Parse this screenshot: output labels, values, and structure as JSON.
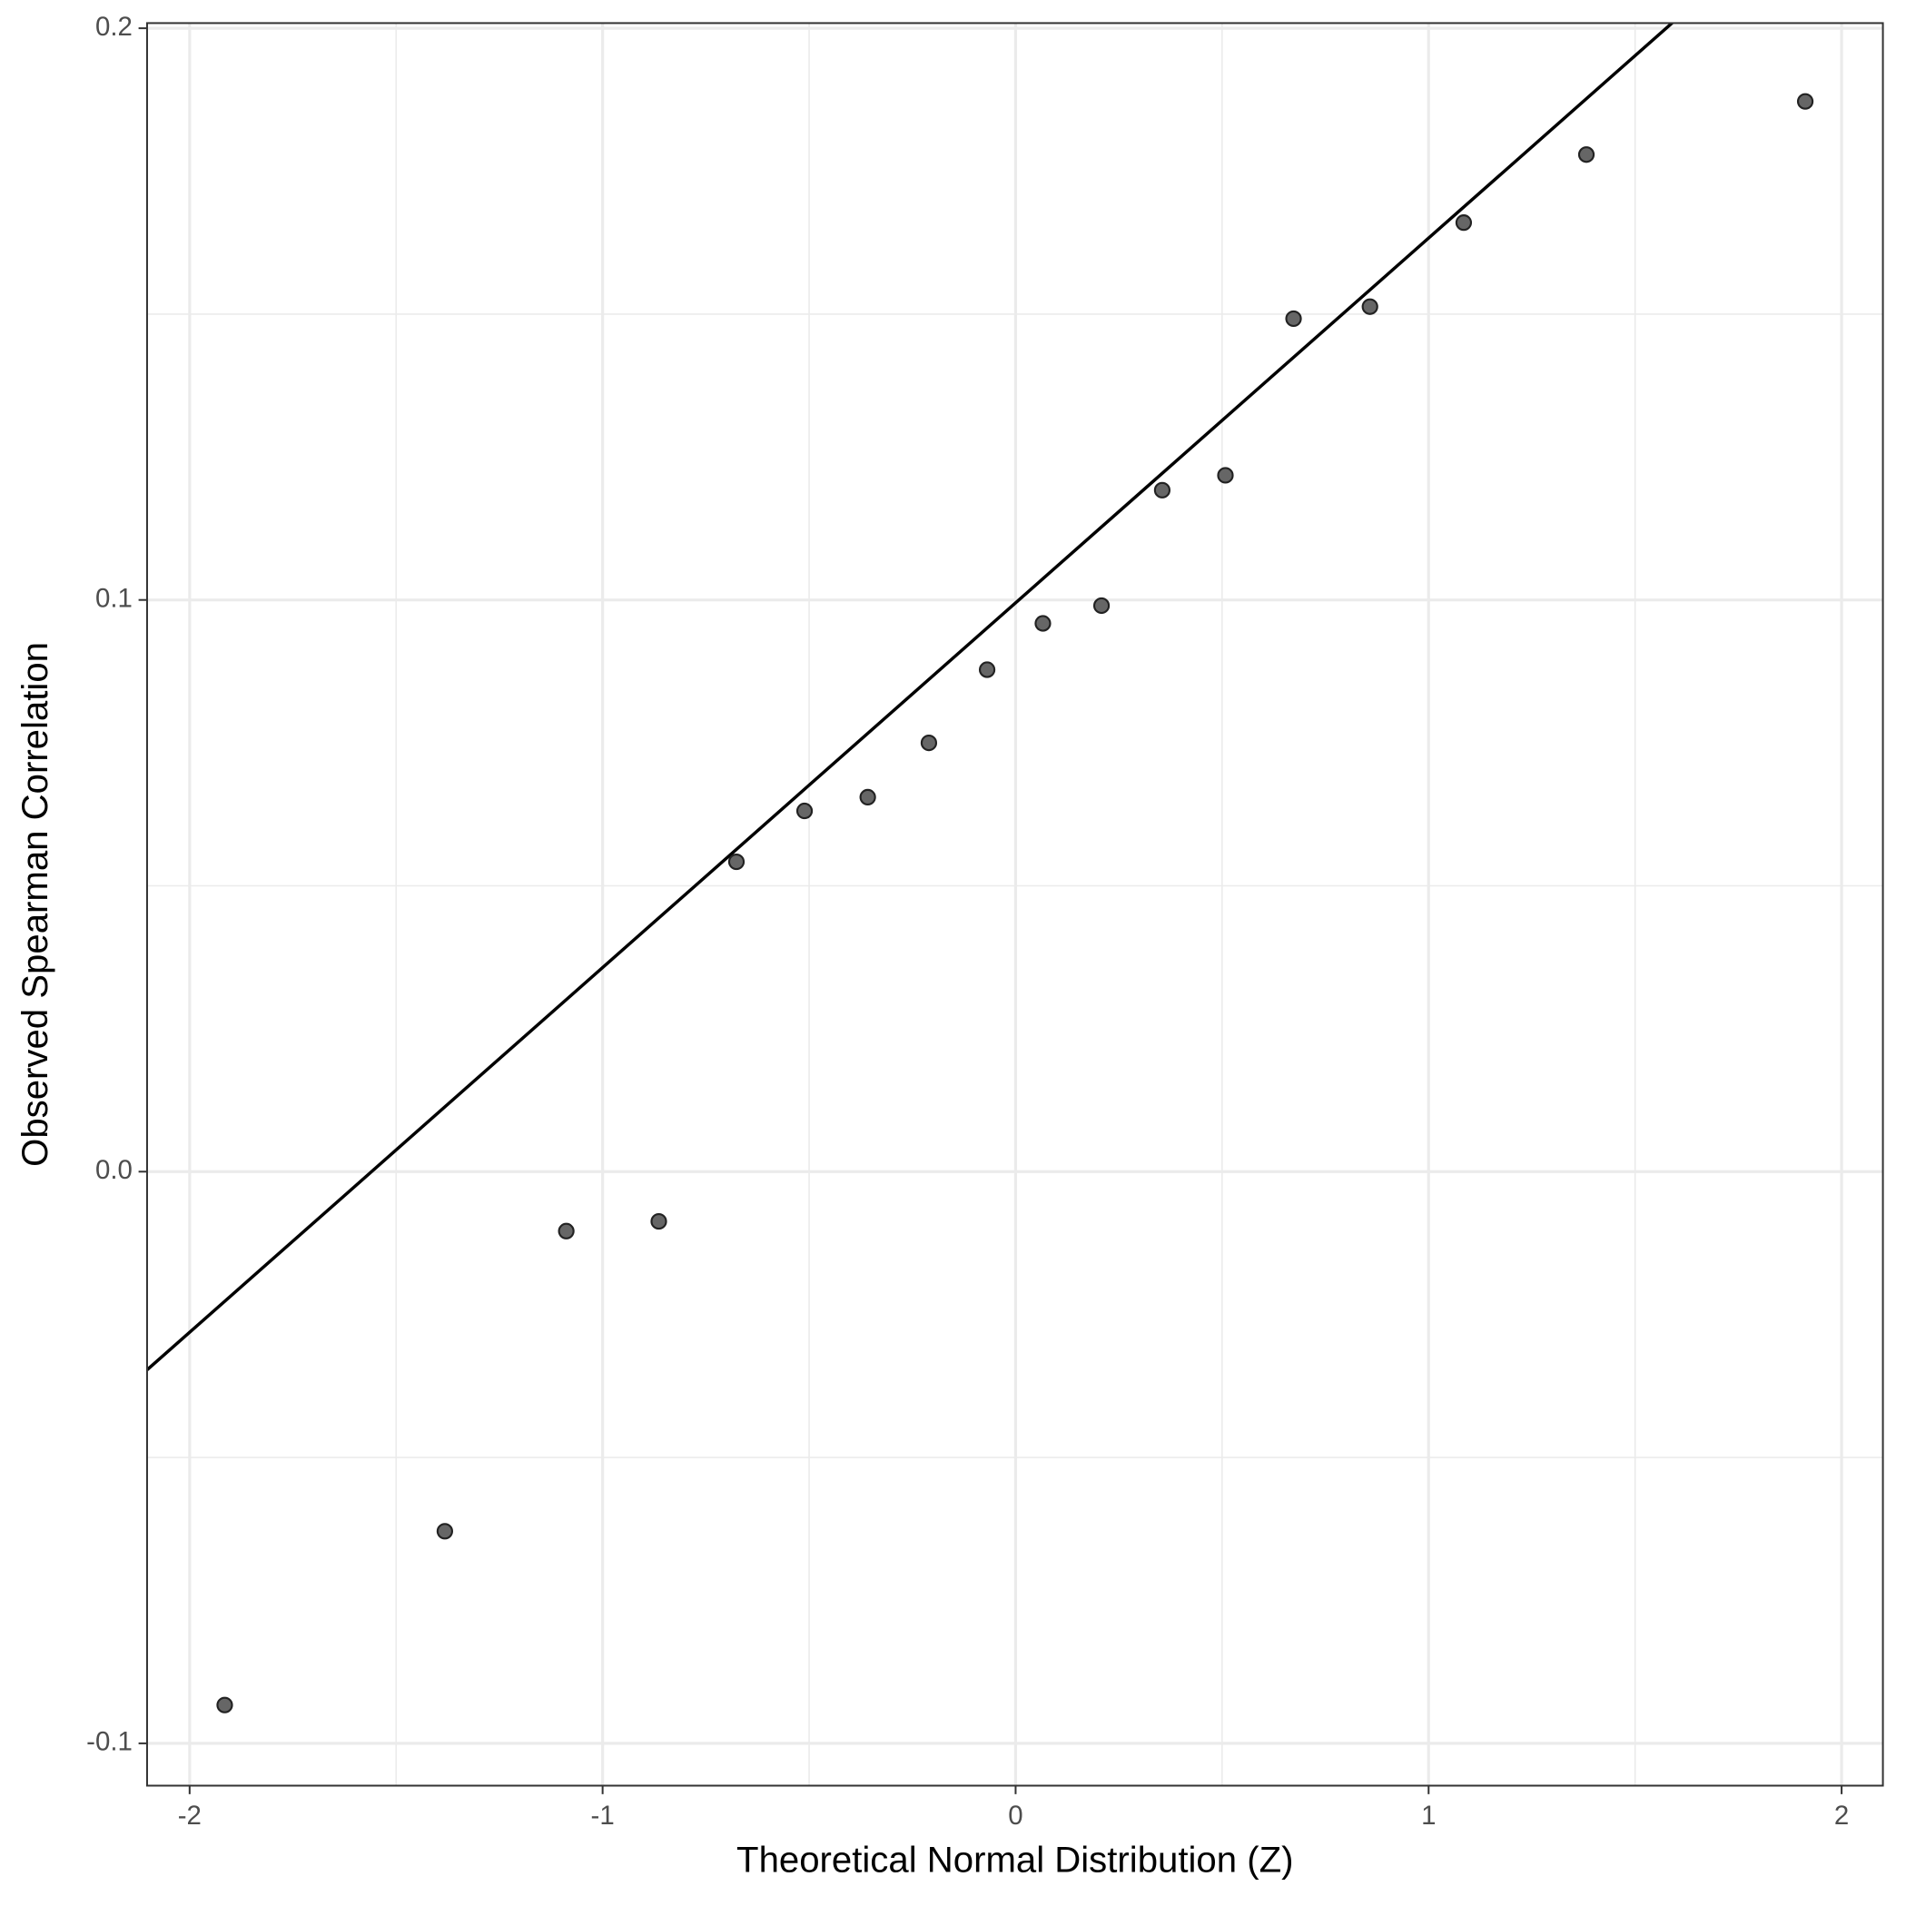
{
  "chart_data": {
    "type": "scatter",
    "x_label": "Theoretical Normal Distribution (Z)",
    "y_label": "Observed Spearman Correlation",
    "x": [
      -1.915,
      -1.382,
      -1.088,
      -0.864,
      -0.676,
      -0.511,
      -0.358,
      -0.21,
      -0.069,
      0.066,
      0.208,
      0.355,
      0.508,
      0.673,
      0.858,
      1.085,
      1.382,
      1.912
    ],
    "values": [
      -0.0933,
      -0.0629,
      -0.0104,
      -0.0087,
      0.0542,
      0.0631,
      0.0655,
      0.075,
      0.0878,
      0.0959,
      0.099,
      0.1192,
      0.1218,
      0.1492,
      0.1513,
      0.166,
      0.1779,
      0.1872
    ],
    "color": "#666666",
    "reference_line": {
      "intercept": 0.0995,
      "slope": 0.0638,
      "color": "#000000"
    },
    "xlim": [
      -2.103,
      2.1
    ],
    "ylim": [
      -0.1074,
      0.2009
    ],
    "xticks": [
      -2,
      -1,
      0,
      1,
      2
    ],
    "yticks": [
      -0.1,
      {
        "value": 0,
        "label": "0.0"
      },
      0.1,
      0.2
    ],
    "minor_xgrid": [
      -1.5,
      -0.5,
      0.5,
      1.5
    ],
    "minor_ygrid": [
      -0.05,
      0.05,
      0.15
    ],
    "grid": true
  }
}
